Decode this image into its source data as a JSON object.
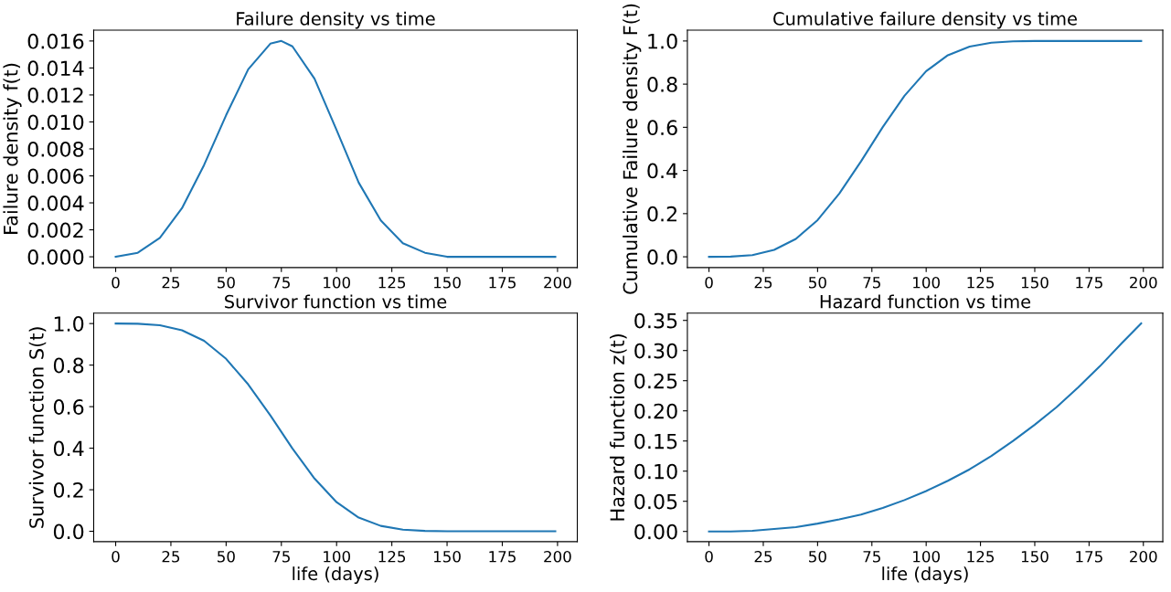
{
  "chart_data": [
    {
      "type": "line",
      "title": "Failure density vs time",
      "ylabel": "Failure density f(t)",
      "color": "#1f77b4",
      "x": [
        0,
        10,
        20,
        30,
        40,
        50,
        60,
        70,
        75,
        80,
        90,
        100,
        110,
        120,
        130,
        140,
        150,
        160,
        170,
        180,
        190,
        199
      ],
      "values": [
        0,
        0.0003,
        0.0014,
        0.0036,
        0.0068,
        0.0105,
        0.0139,
        0.0158,
        0.016,
        0.0156,
        0.0132,
        0.0094,
        0.0055,
        0.0027,
        0.001,
        0.0003,
        0,
        0,
        0,
        0,
        0,
        0
      ],
      "xlim": [
        -9.95,
        208.95
      ],
      "xticks": [
        0,
        25,
        50,
        75,
        100,
        125,
        150,
        175,
        200
      ],
      "ylim": [
        -0.0008,
        0.0168
      ],
      "yticks": [
        {
          "value": 0,
          "label": "0.000"
        },
        {
          "value": 0.002,
          "label": "0.002"
        },
        {
          "value": 0.004,
          "label": "0.004"
        },
        {
          "value": 0.006,
          "label": "0.006"
        },
        {
          "value": 0.008,
          "label": "0.008"
        },
        {
          "value": 0.01,
          "label": "0.010"
        },
        {
          "value": 0.012,
          "label": "0.012"
        },
        {
          "value": 0.014,
          "label": "0.014"
        },
        {
          "value": 0.016,
          "label": "0.016"
        }
      ]
    },
    {
      "type": "line",
      "title": "Cumulative failure density vs time",
      "ylabel": "Cumulative Failure density F(t)",
      "color": "#1f77b4",
      "x": [
        0,
        10,
        20,
        30,
        40,
        50,
        60,
        70,
        80,
        90,
        100,
        110,
        120,
        130,
        140,
        150,
        160,
        170,
        180,
        190,
        199
      ],
      "values": [
        0,
        0.001,
        0.008,
        0.032,
        0.083,
        0.17,
        0.293,
        0.442,
        0.601,
        0.746,
        0.86,
        0.934,
        0.974,
        0.992,
        0.998,
        1,
        1,
        1,
        1,
        1,
        1
      ],
      "xlim": [
        -9.95,
        208.95
      ],
      "xticks": [
        0,
        25,
        50,
        75,
        100,
        125,
        150,
        175,
        200
      ],
      "ylim": [
        -0.05,
        1.05
      ],
      "yticks": [
        {
          "value": 0,
          "label": "0.0"
        },
        {
          "value": 0.2,
          "label": "0.2"
        },
        {
          "value": 0.4,
          "label": "0.4"
        },
        {
          "value": 0.6,
          "label": "0.6"
        },
        {
          "value": 0.8,
          "label": "0.8"
        },
        {
          "value": 1,
          "label": "1.0"
        }
      ]
    },
    {
      "type": "line",
      "title": "Survivor function vs time",
      "ylabel": "Survivor function S(t)",
      "xlabel": "life (days)",
      "color": "#1f77b4",
      "x": [
        0,
        10,
        20,
        30,
        40,
        50,
        60,
        70,
        80,
        90,
        100,
        110,
        120,
        130,
        140,
        150,
        160,
        170,
        180,
        190,
        199
      ],
      "values": [
        1,
        0.999,
        0.992,
        0.968,
        0.917,
        0.83,
        0.707,
        0.558,
        0.399,
        0.254,
        0.14,
        0.066,
        0.026,
        0.008,
        0.002,
        0,
        0,
        0,
        0,
        0,
        0
      ],
      "xlim": [
        -9.95,
        208.95
      ],
      "xticks": [
        0,
        25,
        50,
        75,
        100,
        125,
        150,
        175,
        200
      ],
      "ylim": [
        -0.05,
        1.05
      ],
      "yticks": [
        {
          "value": 0,
          "label": "0.0"
        },
        {
          "value": 0.2,
          "label": "0.2"
        },
        {
          "value": 0.4,
          "label": "0.4"
        },
        {
          "value": 0.6,
          "label": "0.6"
        },
        {
          "value": 0.8,
          "label": "0.8"
        },
        {
          "value": 1,
          "label": "1.0"
        }
      ]
    },
    {
      "type": "line",
      "title": "Hazard function vs time",
      "ylabel": "Hazard function z(t)",
      "xlabel": "life (days)",
      "color": "#1f77b4",
      "x": [
        0,
        10,
        20,
        30,
        40,
        50,
        60,
        70,
        80,
        90,
        100,
        110,
        120,
        130,
        140,
        150,
        160,
        170,
        180,
        190,
        199
      ],
      "values": [
        0,
        0,
        0.001,
        0.004,
        0.007,
        0.013,
        0.02,
        0.028,
        0.039,
        0.052,
        0.067,
        0.084,
        0.103,
        0.125,
        0.15,
        0.177,
        0.206,
        0.239,
        0.274,
        0.312,
        0.345
      ],
      "xlim": [
        -9.95,
        208.95
      ],
      "xticks": [
        0,
        25,
        50,
        75,
        100,
        125,
        150,
        175,
        200
      ],
      "ylim": [
        -0.017,
        0.362
      ],
      "yticks": [
        {
          "value": 0,
          "label": "0.00"
        },
        {
          "value": 0.05,
          "label": "0.05"
        },
        {
          "value": 0.1,
          "label": "0.10"
        },
        {
          "value": 0.15,
          "label": "0.15"
        },
        {
          "value": 0.2,
          "label": "0.20"
        },
        {
          "value": 0.25,
          "label": "0.25"
        },
        {
          "value": 0.3,
          "label": "0.30"
        },
        {
          "value": 0.35,
          "label": "0.35"
        }
      ]
    }
  ]
}
